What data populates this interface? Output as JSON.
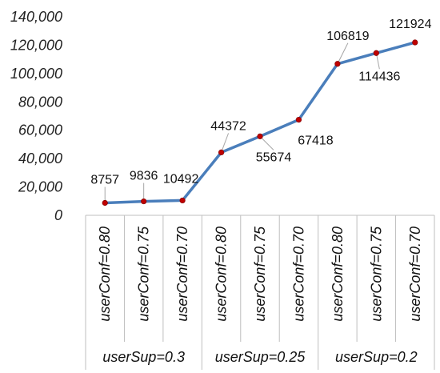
{
  "chart_data": {
    "type": "line",
    "title": "",
    "xlabel": "",
    "ylabel": "",
    "ylim": [
      0,
      140000
    ],
    "yticks": [
      0,
      20000,
      40000,
      60000,
      80000,
      100000,
      120000,
      140000
    ],
    "ytick_labels": [
      "0",
      "20,000",
      "40,000",
      "60,000",
      "80,000",
      "100,000",
      "120,000",
      "140,000"
    ],
    "grid": false,
    "legend": "none",
    "categories": [
      "userConf=0.80",
      "userConf=0.75",
      "userConf=0.70",
      "userConf=0.80",
      "userConf=0.75",
      "userConf=0.70",
      "userConf=0.80",
      "userConf=0.75",
      "userConf=0.70"
    ],
    "groups": [
      {
        "label": "userSup=0.3",
        "size": 3
      },
      {
        "label": "userSup=0.25",
        "size": 3
      },
      {
        "label": "userSup=0.2",
        "size": 3
      }
    ],
    "series": [
      {
        "values": [
          8757,
          9836,
          10492,
          44372,
          55674,
          67418,
          106819,
          114436,
          121924
        ],
        "labels": [
          "8757",
          "9836",
          "10492",
          "44372",
          "55674",
          "67418",
          "106819",
          "114436",
          "121924"
        ],
        "line_color": "#4a7ebb",
        "marker_color": "#c00000"
      }
    ]
  }
}
